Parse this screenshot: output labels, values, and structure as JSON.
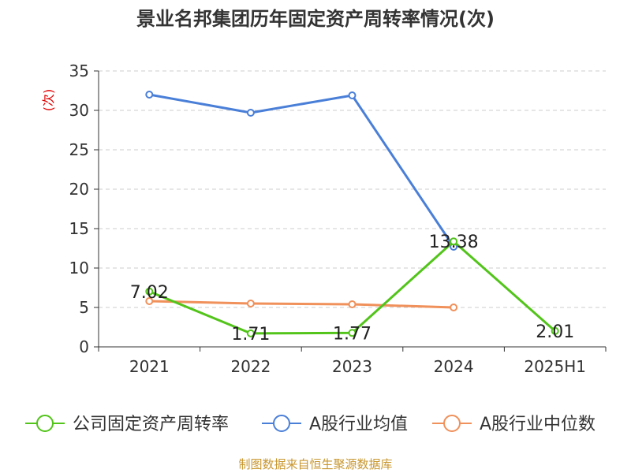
{
  "chart_data": {
    "type": "line",
    "title": "景业名邦集团历年固定资产周转率情况(次)",
    "ylabel": "(次)",
    "xlabel": "",
    "categories": [
      "2021",
      "2022",
      "2023",
      "2024",
      "2025H1"
    ],
    "ylim": [
      0,
      35
    ],
    "yticks": [
      0,
      5,
      10,
      15,
      20,
      25,
      30,
      35
    ],
    "grid": true,
    "series": [
      {
        "name": "公司固定资产周转率",
        "color": "#52c41a",
        "values": [
          7.02,
          1.71,
          1.77,
          13.38,
          2.01
        ],
        "labels": [
          "7.02",
          "1.71",
          "1.77",
          "13.38",
          "2.01"
        ]
      },
      {
        "name": "A股行业均值",
        "color": "#4a7fd8",
        "values": [
          32.0,
          29.7,
          31.9,
          12.7,
          null
        ]
      },
      {
        "name": "A股行业中位数",
        "color": "#f0905a",
        "values": [
          5.8,
          5.5,
          5.4,
          5.0,
          null
        ]
      }
    ],
    "legend_position": "bottom",
    "source": "制图数据来自恒生聚源数据库"
  }
}
